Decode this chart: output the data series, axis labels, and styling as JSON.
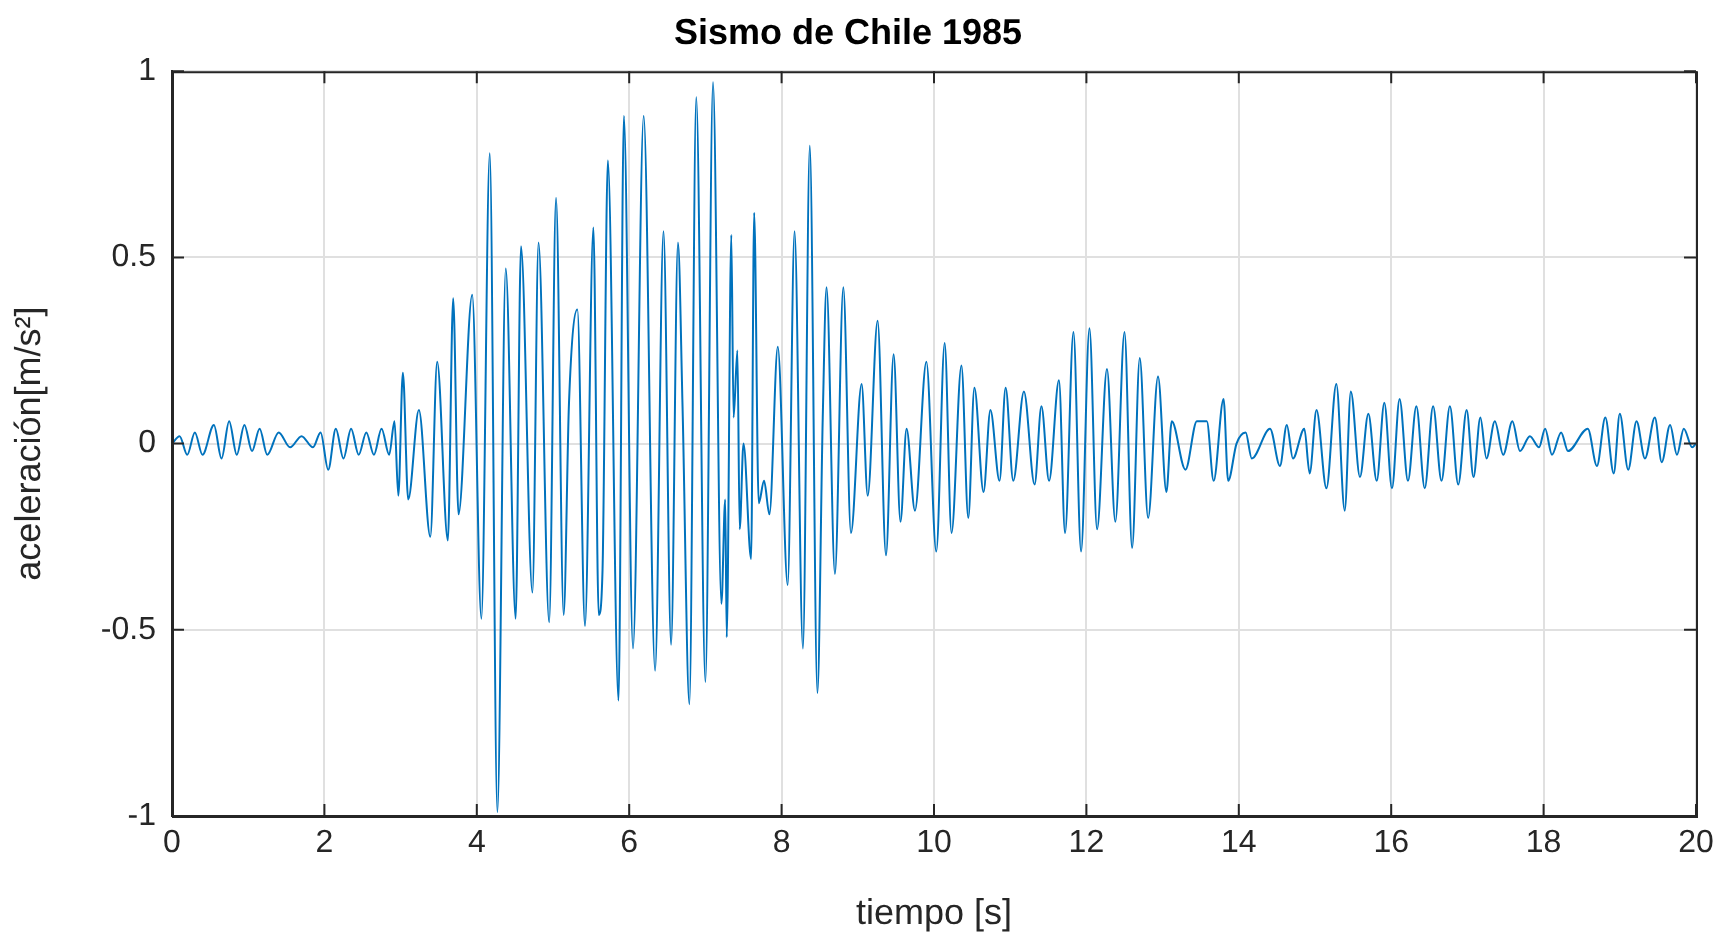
{
  "chart_data": {
    "type": "line",
    "title": "Sismo de Chile 1985",
    "xlabel": "tiempo [s]",
    "ylabel": "aceleración[m/s²]",
    "xlim": [
      0,
      20
    ],
    "xticks": [
      0,
      2,
      4,
      6,
      8,
      10,
      12,
      14,
      16,
      18,
      20
    ],
    "ylim": [
      -1,
      1
    ],
    "yticks": [
      -1,
      -0.5,
      0,
      0.5,
      1
    ],
    "grid": true,
    "legend": false,
    "marker": "none",
    "line_style": "solid",
    "series": [
      {
        "color": "#0072bd",
        "x": [
          0,
          0.1,
          0.2,
          0.3,
          0.4,
          0.55,
          0.65,
          0.75,
          0.85,
          0.95,
          1.05,
          1.15,
          1.25,
          1.4,
          1.55,
          1.7,
          1.85,
          1.95,
          2.05,
          2.15,
          2.25,
          2.35,
          2.45,
          2.55,
          2.65,
          2.75,
          2.85,
          2.92,
          2.97,
          3.03,
          3.1,
          3.24,
          3.39,
          3.48,
          3.62,
          3.69,
          3.76,
          3.94,
          4.06,
          4.17,
          4.27,
          4.38,
          4.51,
          4.58,
          4.73,
          4.81,
          4.95,
          5.04,
          5.14,
          5.21,
          5.32,
          5.42,
          5.53,
          5.6,
          5.65,
          5.72,
          5.86,
          5.93,
          6.05,
          6.19,
          6.34,
          6.45,
          6.55,
          6.64,
          6.7,
          6.79,
          6.88,
          7,
          7.1,
          7.21,
          7.26,
          7.28,
          7.34,
          7.37,
          7.42,
          7.45,
          7.5,
          7.6,
          7.64,
          7.7,
          7.77,
          7.84,
          7.95,
          8.08,
          8.17,
          8.28,
          8.37,
          8.47,
          8.54,
          8.59,
          8.7,
          8.81,
          8.91,
          9.05,
          9.13,
          9.26,
          9.37,
          9.47,
          9.56,
          9.64,
          9.75,
          9.9,
          10.03,
          10.14,
          10.23,
          10.36,
          10.45,
          10.53,
          10.65,
          10.74,
          10.86,
          10.94,
          11.04,
          11.18,
          11.32,
          11.41,
          11.51,
          11.64,
          11.72,
          11.83,
          11.93,
          12.04,
          12.14,
          12.27,
          12.38,
          12.5,
          12.6,
          12.7,
          12.81,
          12.94,
          13.05,
          13.12,
          13.3,
          13.45,
          13.58,
          13.67,
          13.8,
          13.86,
          13.97,
          14.09,
          14.17,
          14.41,
          14.54,
          14.63,
          14.71,
          14.86,
          14.93,
          15.02,
          15.15,
          15.28,
          15.39,
          15.47,
          15.59,
          15.7,
          15.81,
          15.91,
          16.01,
          16.11,
          16.22,
          16.33,
          16.44,
          16.55,
          16.66,
          16.77,
          16.88,
          16.99,
          17.08,
          17.17,
          17.25,
          17.36,
          17.47,
          17.59,
          17.69,
          17.82,
          17.94,
          18.02,
          18.11,
          18.23,
          18.32,
          18.58,
          18.7,
          18.81,
          18.92,
          19,
          19.11,
          19.22,
          19.33,
          19.46,
          19.55,
          19.66,
          19.75,
          19.84,
          19.95,
          20
        ],
        "values": [
          0,
          0.02,
          -0.03,
          0.03,
          -0.03,
          0.05,
          -0.04,
          0.06,
          -0.03,
          0.05,
          -0.02,
          0.04,
          -0.03,
          0.03,
          -0.01,
          0.02,
          -0.01,
          0.03,
          -0.07,
          0.04,
          -0.04,
          0.04,
          -0.03,
          0.03,
          -0.03,
          0.04,
          -0.03,
          0.06,
          -0.14,
          0.19,
          -0.15,
          0.09,
          -0.25,
          0.22,
          -0.26,
          0.39,
          -0.19,
          0.4,
          -0.47,
          0.78,
          -0.99,
          0.47,
          -0.47,
          0.53,
          -0.4,
          0.54,
          -0.48,
          0.66,
          -0.46,
          0.11,
          0.36,
          -0.49,
          0.58,
          -0.46,
          -0.34,
          0.76,
          -0.69,
          0.88,
          -0.55,
          0.88,
          -0.61,
          0.57,
          -0.54,
          0.54,
          0.1,
          -0.7,
          0.93,
          -0.64,
          0.97,
          -0.43,
          -0.15,
          -0.52,
          0.56,
          0.07,
          0.25,
          -0.23,
          0,
          -0.31,
          0.62,
          -0.16,
          -0.1,
          -0.19,
          0.26,
          -0.38,
          0.57,
          -0.55,
          0.8,
          -0.67,
          0.07,
          0.42,
          -0.35,
          0.42,
          -0.24,
          0.16,
          -0.14,
          0.33,
          -0.3,
          0.24,
          -0.21,
          0.04,
          -0.18,
          0.22,
          -0.29,
          0.27,
          -0.24,
          0.21,
          -0.2,
          0.15,
          -0.13,
          0.09,
          -0.1,
          0.15,
          -0.1,
          0.14,
          -0.11,
          0.1,
          -0.1,
          0.17,
          -0.24,
          0.3,
          -0.29,
          0.31,
          -0.23,
          0.2,
          -0.21,
          0.3,
          -0.28,
          0.23,
          -0.2,
          0.18,
          -0.13,
          0.06,
          -0.07,
          0.06,
          0.06,
          -0.1,
          0.12,
          -0.1,
          0,
          0.03,
          -0.04,
          0.04,
          -0.06,
          0.05,
          -0.04,
          0.04,
          -0.08,
          0.09,
          -0.12,
          0.16,
          -0.18,
          0.14,
          -0.09,
          0.08,
          -0.1,
          0.11,
          -0.12,
          0.12,
          -0.1,
          0.1,
          -0.12,
          0.1,
          -0.1,
          0.1,
          -0.11,
          0.09,
          -0.09,
          0.07,
          -0.04,
          0.06,
          -0.03,
          0.06,
          -0.02,
          0.02,
          -0.01,
          0.04,
          -0.03,
          0.03,
          -0.02,
          0.04,
          -0.06,
          0.07,
          -0.08,
          0.08,
          -0.07,
          0.06,
          -0.04,
          0.07,
          -0.05,
          0.05,
          -0.03,
          0.04,
          -0.01,
          0
        ]
      }
    ]
  }
}
